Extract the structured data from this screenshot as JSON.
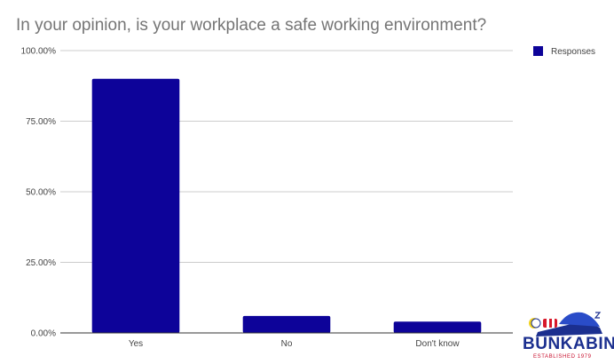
{
  "chart_data": {
    "type": "bar",
    "title": "In your opinion, is your workplace a safe working environment?",
    "categories": [
      "Yes",
      "No",
      "Don't know"
    ],
    "series": [
      {
        "name": "Responses",
        "values": [
          90,
          6,
          4
        ],
        "color": "#0d0399"
      }
    ],
    "ylim": [
      0,
      100
    ],
    "yticks": [
      "0.00%",
      "25.00%",
      "50.00%",
      "75.00%",
      "100.00%"
    ],
    "ytick_values": [
      0,
      25,
      50,
      75,
      100
    ],
    "xlabel": "",
    "ylabel": "",
    "grid": true,
    "legend_position": "top-right"
  },
  "logo": {
    "wordmark": "BUNKABIN",
    "tagline": "ESTABLISHED 1979",
    "icon": "sleeping-figure-icon"
  }
}
